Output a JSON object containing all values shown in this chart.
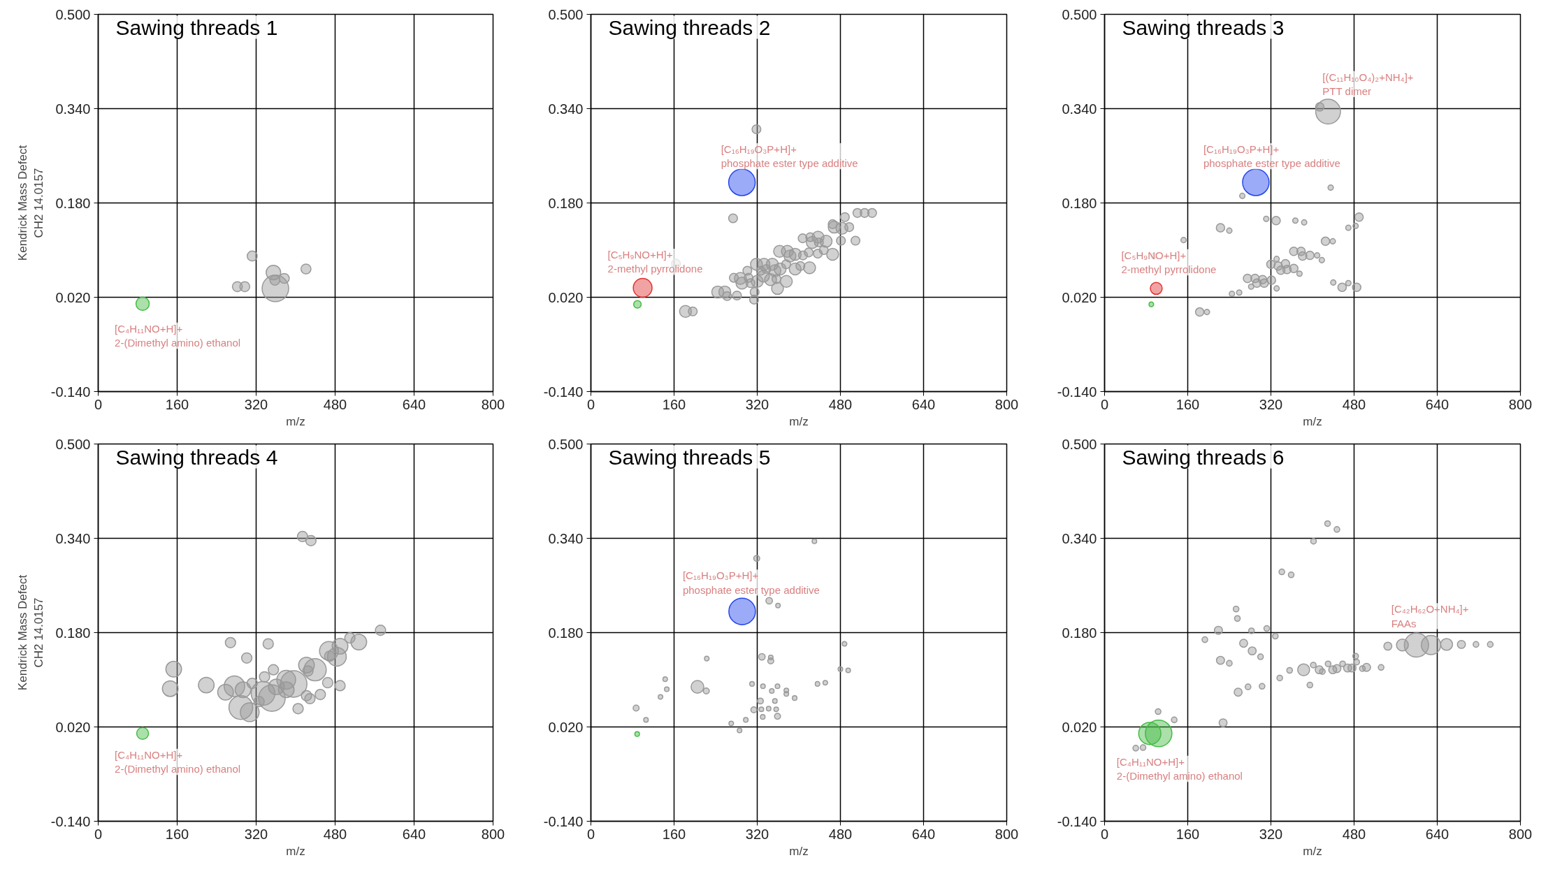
{
  "chart_data": [
    {
      "type": "bubble",
      "title": "Sawing threads 1",
      "xlabel": "m/z",
      "ylabel": "Kendrick Mass Defect\nCH2 14.0157",
      "xlim": [
        0,
        800
      ],
      "ylim": [
        -0.14,
        0.5
      ],
      "xticks": [
        0,
        160,
        320,
        480,
        640,
        800
      ],
      "yticks": [
        {
          "value": -0.14,
          "label": "-0.140"
        },
        {
          "value": 0.02,
          "label": "0.020"
        },
        {
          "value": 0.18,
          "label": "0.180"
        },
        {
          "value": 0.34,
          "label": "0.340"
        },
        {
          "value": 0.5,
          "label": "0.500"
        }
      ],
      "grid": true,
      "series": [
        {
          "color": "#44bb44",
          "x": [
            90
          ],
          "values": [
            0.009
          ],
          "sizes": [
            0.25
          ]
        },
        {
          "color": "#999999",
          "x": [
            312,
            282,
            297,
            355,
            358,
            377,
            359,
            421
          ],
          "values": [
            0.09,
            0.038,
            0.038,
            0.062,
            0.049,
            0.052,
            0.035,
            0.068
          ],
          "sizes": [
            0.14,
            0.14,
            0.14,
            0.3,
            0.14,
            0.14,
            1,
            0.14
          ]
        }
      ],
      "annotations": [
        {
          "text": "[C₄H₁₁NO+H]+\n2-(Dimethyl amino) ethanol",
          "x": 90,
          "y": 0.009
        }
      ]
    },
    {
      "type": "bubble",
      "title": "Sawing threads 2",
      "xlabel": "m/z",
      "xlim": [
        0,
        800
      ],
      "ylim": [
        -0.14,
        0.5
      ],
      "xticks": [
        0,
        160,
        320,
        480,
        640,
        800
      ],
      "yticks": [
        {
          "value": -0.14,
          "label": "-0.140"
        },
        {
          "value": 0.02,
          "label": "0.020"
        },
        {
          "value": 0.18,
          "label": "0.180"
        },
        {
          "value": 0.34,
          "label": "0.340"
        },
        {
          "value": 0.5,
          "label": "0.500"
        }
      ],
      "grid": true,
      "series": [
        {
          "color": "#44bb44",
          "x": [
            89.5
          ],
          "values": [
            0.008
          ],
          "sizes": [
            0.08
          ]
        },
        {
          "color": "#e03333",
          "x": [
            99.6
          ],
          "values": [
            0.036
          ],
          "sizes": [
            0.5
          ]
        },
        {
          "color": "#2244ee",
          "x": [
            290.6
          ],
          "values": [
            0.215
          ],
          "sizes": [
            1
          ]
        },
        {
          "color": "#999999",
          "x": [
            318.5,
            273.5,
            182,
            196,
            244,
            257.6,
            262,
            281,
            275,
            287.6,
            290.6,
            301,
            303.3,
            307,
            320,
            315,
            314,
            318.5,
            332,
            327,
            333,
            337.6,
            349,
            345.6,
            354,
            357,
            359,
            364,
            375.6,
            376,
            363,
            378,
            383,
            393,
            408,
            393,
            403,
            420.7,
            419,
            436.5,
            448,
            465,
            407.4,
            422,
            426,
            437,
            438.6,
            452.5,
            465,
            468,
            483,
            497,
            488.6,
            481,
            509,
            512.7,
            526.6,
            541,
            163.7
          ],
          "values": [
            0.305,
            0.154,
            -0.004,
            -0.004,
            0.029,
            0.029,
            0.022,
            0.023,
            0.053,
            0.052,
            0.044,
            0.065,
            0.053,
            0.044,
            0.047,
            0.029,
            0.016,
            0.076,
            0.056,
            0.065,
            0.076,
            0.068,
            0.076,
            0.05,
            0.065,
            0.051,
            0.035,
            0.068,
            0.076,
            0.047,
            0.098,
            0.098,
            0.09,
            0.093,
            0.091,
            0.068,
            0.073,
            0.07,
            0.096,
            0.094,
            0.1,
            0.093,
            0.12,
            0.122,
            0.113,
            0.122,
            0.113,
            0.115,
            0.144,
            0.139,
            0.137,
            0.139,
            0.156,
            0.116,
            0.116,
            0.163,
            0.163,
            0.163,
            0.077
          ],
          "sizes": [
            0.11,
            0.11,
            0.2,
            0.11,
            0.2,
            0.2,
            0.11,
            0.11,
            0.11,
            0.2,
            0.2,
            0.11,
            0.11,
            0.11,
            0.2,
            0.11,
            0.11,
            0.2,
            0.2,
            0.11,
            0.2,
            0.11,
            0.2,
            0.2,
            0.2,
            0.11,
            0.2,
            0.2,
            0.11,
            0.2,
            0.2,
            0.2,
            0.2,
            0.2,
            0.11,
            0.2,
            0.11,
            0.2,
            0.11,
            0.11,
            0.11,
            0.2,
            0.11,
            0.11,
            0.2,
            0.2,
            0.11,
            0.2,
            0.11,
            0.2,
            0.2,
            0.11,
            0.11,
            0.11,
            0.11,
            0.11,
            0.11,
            0.11,
            0.11
          ]
        }
      ],
      "annotations": [
        {
          "text": "[C₅H₉NO+H]+\n2-methyl pyrrolidone",
          "x": 99.6,
          "y": 0.036
        },
        {
          "text": "[C₁₆H₁₉O₃P+H]+\nphosphate ester type additive",
          "x": 290.6,
          "y": 0.215
        }
      ]
    },
    {
      "type": "bubble",
      "title": "Sawing threads 3",
      "xlabel": "m/z",
      "xlim": [
        0,
        800
      ],
      "ylim": [
        -0.14,
        0.5
      ],
      "xticks": [
        0,
        160,
        320,
        480,
        640,
        800
      ],
      "yticks": [
        {
          "value": -0.14,
          "label": "-0.140"
        },
        {
          "value": 0.02,
          "label": "0.020"
        },
        {
          "value": 0.18,
          "label": "0.180"
        },
        {
          "value": 0.34,
          "label": "0.340"
        },
        {
          "value": 0.5,
          "label": "0.500"
        }
      ],
      "grid": true,
      "series": [
        {
          "color": "#44bb44",
          "x": [
            90
          ],
          "values": [
            0.008
          ],
          "sizes": [
            0.03
          ]
        },
        {
          "color": "#e03333",
          "x": [
            99.4
          ],
          "values": [
            0.035
          ],
          "sizes": [
            0.2
          ]
        },
        {
          "color": "#2244ee",
          "x": [
            291
          ],
          "values": [
            0.215
          ],
          "sizes": [
            1
          ]
        },
        {
          "color": "#999999",
          "x": [
            430,
            414,
            435,
            265,
            183,
            197,
            152,
            94.4,
            223,
            240,
            311,
            330,
            367,
            384,
            425,
            439,
            469,
            483,
            489.6,
            245,
            259,
            275,
            289.5,
            304,
            282,
            293,
            307,
            321,
            331,
            320,
            331,
            334,
            339,
            348,
            351,
            364,
            375,
            364,
            378,
            381,
            395,
            409,
            418,
            440,
            457,
            469,
            485
          ],
          "values": [
            0.335,
            0.343,
            0.206,
            0.192,
            -0.005,
            -0.005,
            0.117,
            0.09,
            0.138,
            0.133,
            0.153,
            0.15,
            0.15,
            0.147,
            0.115,
            0.115,
            0.138,
            0.141,
            0.156,
            0.026,
            0.028,
            0.052,
            0.052,
            0.05,
            0.038,
            0.044,
            0.044,
            0.049,
            0.035,
            0.076,
            0.085,
            0.073,
            0.066,
            0.077,
            0.067,
            0.069,
            0.06,
            0.098,
            0.098,
            0.09,
            0.091,
            0.091,
            0.083,
            0.045,
            0.037,
            0.044,
            0.037
          ],
          "sizes": [
            0.87,
            0.1,
            0.04,
            0.04,
            0.1,
            0.04,
            0.04,
            0.04,
            0.1,
            0.04,
            0.04,
            0.1,
            0.04,
            0.04,
            0.1,
            0.04,
            0.04,
            0.04,
            0.1,
            0.04,
            0.04,
            0.1,
            0.1,
            0.1,
            0.04,
            0.1,
            0.1,
            0.1,
            0.04,
            0.1,
            0.04,
            0.1,
            0.1,
            0.1,
            0.1,
            0.1,
            0.04,
            0.1,
            0.1,
            0.1,
            0.1,
            0.04,
            0.04,
            0.04,
            0.1,
            0.04,
            0.1
          ]
        }
      ],
      "annotations": [
        {
          "text": "[C₅H₉NO+H]+\n2-methyl pyrrolidone",
          "x": 99.4,
          "y": 0.035
        },
        {
          "text": "[C₁₆H₁₉O₃P+H]+\nphosphate ester type additive",
          "x": 291,
          "y": 0.215
        },
        {
          "text": "[(C₁₁H₁₀O₄)₂+NH₄]+\nPTT dimer",
          "x": 430,
          "y": 0.335
        }
      ]
    },
    {
      "type": "bubble",
      "title": "Sawing threads 4",
      "xlabel": "m/z",
      "ylabel": "Kendrick Mass Defect\nCH2 14.0157",
      "xlim": [
        0,
        800
      ],
      "ylim": [
        -0.14,
        0.5
      ],
      "xticks": [
        0,
        160,
        320,
        480,
        640,
        800
      ],
      "yticks": [
        {
          "value": -0.14,
          "label": "-0.140"
        },
        {
          "value": 0.02,
          "label": "0.020"
        },
        {
          "value": 0.18,
          "label": "0.180"
        },
        {
          "value": 0.34,
          "label": "0.340"
        },
        {
          "value": 0.5,
          "label": "0.500"
        }
      ],
      "grid": true,
      "series": [
        {
          "color": "#44bb44",
          "x": [
            90
          ],
          "values": [
            0.009
          ],
          "sizes": [
            0.2
          ]
        },
        {
          "color": "#999999",
          "x": [
            414,
            431,
            268,
            344.5,
            301,
            153,
            146,
            219,
            258,
            276,
            293.5,
            312,
            289,
            307,
            326,
            334,
            337,
            355,
            352,
            361,
            381,
            381,
            396,
            405,
            422,
            425,
            439.5,
            422,
            429,
            450,
            465,
            467.5,
            469,
            483.6,
            490,
            490,
            510,
            528,
            572
          ],
          "values": [
            0.343,
            0.336,
            0.163,
            0.161,
            0.137,
            0.118,
            0.085,
            0.091,
            0.079,
            0.089,
            0.083,
            0.094,
            0.053,
            0.045,
            0.063,
            0.077,
            0.105,
            0.117,
            0.069,
            0.088,
            0.1,
            0.083,
            0.093,
            0.051,
            0.125,
            0.115,
            0.117,
            0.073,
            0.068,
            0.075,
            0.095,
            0.149,
            0.14,
            0.139,
            0.09,
            0.157,
            0.171,
            0.164,
            0.184
          ],
          "sizes": [
            0.15,
            0.15,
            0.15,
            0.15,
            0.15,
            0.35,
            0.35,
            0.35,
            0.35,
            0.6,
            0.35,
            0.15,
            0.8,
            0.5,
            0.15,
            0.8,
            0.15,
            0.15,
            1,
            0.35,
            0.5,
            0.35,
            1,
            0.15,
            0.35,
            0.15,
            0.7,
            0.15,
            0.15,
            0.15,
            0.15,
            0.5,
            0.15,
            0.5,
            0.15,
            0.35,
            0.15,
            0.35,
            0.15
          ]
        }
      ],
      "annotations": [
        {
          "text": "[C₄H₁₁NO+H]+\n2-(Dimethyl amino) ethanol",
          "x": 90,
          "y": 0.009
        }
      ]
    },
    {
      "type": "bubble",
      "title": "Sawing threads 5",
      "xlabel": "m/z",
      "xlim": [
        0,
        800
      ],
      "ylim": [
        -0.14,
        0.5
      ],
      "xticks": [
        0,
        160,
        320,
        480,
        640,
        800
      ],
      "yticks": [
        {
          "value": -0.14,
          "label": "-0.140"
        },
        {
          "value": 0.02,
          "label": "0.020"
        },
        {
          "value": 0.18,
          "label": "0.180"
        },
        {
          "value": 0.34,
          "label": "0.340"
        },
        {
          "value": 0.5,
          "label": "0.500"
        }
      ],
      "grid": true,
      "series": [
        {
          "color": "#44bb44",
          "x": [
            89
          ],
          "values": [
            0.008
          ],
          "sizes": [
            0.03
          ]
        },
        {
          "color": "#2244ee",
          "x": [
            291
          ],
          "values": [
            0.216
          ],
          "sizes": [
            1
          ]
        },
        {
          "color": "#999999",
          "x": [
            430,
            319,
            343,
            360,
            488,
            223,
            329,
            346,
            346,
            480,
            495,
            143,
            146,
            134,
            87,
            106,
            205,
            222,
            310,
            331,
            348,
            359,
            376,
            376,
            392,
            436,
            451,
            326,
            354,
            313.5,
            328,
            342,
            356.5,
            359,
            330.6,
            298,
            270,
            286
          ],
          "values": [
            0.335,
            0.306,
            0.234,
            0.226,
            0.161,
            0.136,
            0.139,
            0.138,
            0.132,
            0.118,
            0.116,
            0.101,
            0.084,
            0.071,
            0.052,
            0.032,
            0.088,
            0.081,
            0.093,
            0.089,
            0.081,
            0.089,
            0.082,
            0.076,
            0.069,
            0.093,
            0.095,
            0.064,
            0.064,
            0.049,
            0.05,
            0.051,
            0.05,
            0.038,
            0.037,
            0.032,
            0.026,
            0.014
          ],
          "sizes": [
            0.03,
            0.05,
            0.06,
            0.03,
            0.03,
            0.03,
            0.06,
            0.03,
            0.05,
            0.03,
            0.03,
            0.03,
            0.03,
            0.03,
            0.05,
            0.03,
            0.23,
            0.05,
            0.03,
            0.03,
            0.03,
            0.03,
            0.03,
            0.03,
            0.03,
            0.03,
            0.03,
            0.05,
            0.03,
            0.05,
            0.03,
            0.03,
            0.03,
            0.05,
            0.03,
            0.03,
            0.03,
            0.03
          ]
        }
      ],
      "annotations": [
        {
          "text": "[C₁₆H₁₉O₃P+H]+\nphosphate ester type additive",
          "x": 291,
          "y": 0.216
        }
      ]
    },
    {
      "type": "bubble",
      "title": "Sawing threads 6",
      "xlabel": "m/z",
      "xlim": [
        0,
        800
      ],
      "ylim": [
        -0.14,
        0.5
      ],
      "xticks": [
        0,
        160,
        320,
        480,
        640,
        800
      ],
      "yticks": [
        {
          "value": -0.14,
          "label": "-0.140"
        },
        {
          "value": 0.02,
          "label": "0.020"
        },
        {
          "value": 0.18,
          "label": "0.180"
        },
        {
          "value": 0.34,
          "label": "0.340"
        },
        {
          "value": 0.5,
          "label": "0.500"
        }
      ],
      "grid": true,
      "series": [
        {
          "color": "#44bb44",
          "x": [
            87,
            104
          ],
          "values": [
            0.009,
            0.009
          ],
          "sizes": [
            0.7,
            1
          ]
        },
        {
          "color": "#999999",
          "x": [
            60,
            74,
            103,
            134,
            228,
            257,
            276,
            303,
            337,
            356,
            395,
            223,
            240,
            193,
            219,
            253,
            255.5,
            267.5,
            282.6,
            284,
            300,
            312,
            328.5,
            341,
            359,
            402,
            429,
            447,
            383,
            401.6,
            413,
            419,
            430,
            439,
            447,
            458,
            467.6,
            476,
            483,
            485,
            496,
            504,
            532,
            545,
            573,
            600,
            628,
            658,
            686.5,
            714.5,
            742
          ],
          "values": [
            -0.016,
            -0.015,
            0.046,
            0.032,
            0.027,
            0.079,
            0.088,
            0.089,
            0.103,
            0.116,
            0.091,
            0.133,
            0.128,
            0.168,
            0.184,
            0.22,
            0.204,
            0.162,
            0.183,
            0.149,
            0.139,
            0.187,
            0.174,
            0.283,
            0.278,
            0.335,
            0.365,
            0.355,
            0.117,
            0.125,
            0.117,
            0.114,
            0.127,
            0.117,
            0.119,
            0.127,
            0.12,
            0.12,
            0.14,
            0.13,
            0.119,
            0.121,
            0.121,
            0.157,
            0.159,
            0.159,
            0.159,
            0.16,
            0.16,
            0.16,
            0.16
          ],
          "sizes": [
            0.045,
            0.045,
            0.045,
            0.045,
            0.09,
            0.09,
            0.045,
            0.045,
            0.045,
            0.045,
            0.045,
            0.09,
            0.045,
            0.045,
            0.09,
            0.045,
            0.045,
            0.09,
            0.045,
            0.09,
            0.045,
            0.045,
            0.045,
            0.045,
            0.045,
            0.045,
            0.045,
            0.045,
            0.2,
            0.045,
            0.09,
            0.045,
            0.045,
            0.09,
            0.09,
            0.045,
            0.09,
            0.09,
            0.045,
            0.045,
            0.045,
            0.09,
            0.045,
            0.09,
            0.2,
            0.83,
            0.53,
            0.2,
            0.09,
            0.045,
            0.045
          ]
        }
      ],
      "annotations": [
        {
          "text": "[C₄H₁₁NO+H]+\n2-(Dimethyl amino) ethanol",
          "x": 104,
          "y": 0.009
        },
        {
          "text": "[C₄₂H₆₂O+NH₄]+\nFAAs",
          "x": 600,
          "y": 0.159
        }
      ]
    }
  ]
}
